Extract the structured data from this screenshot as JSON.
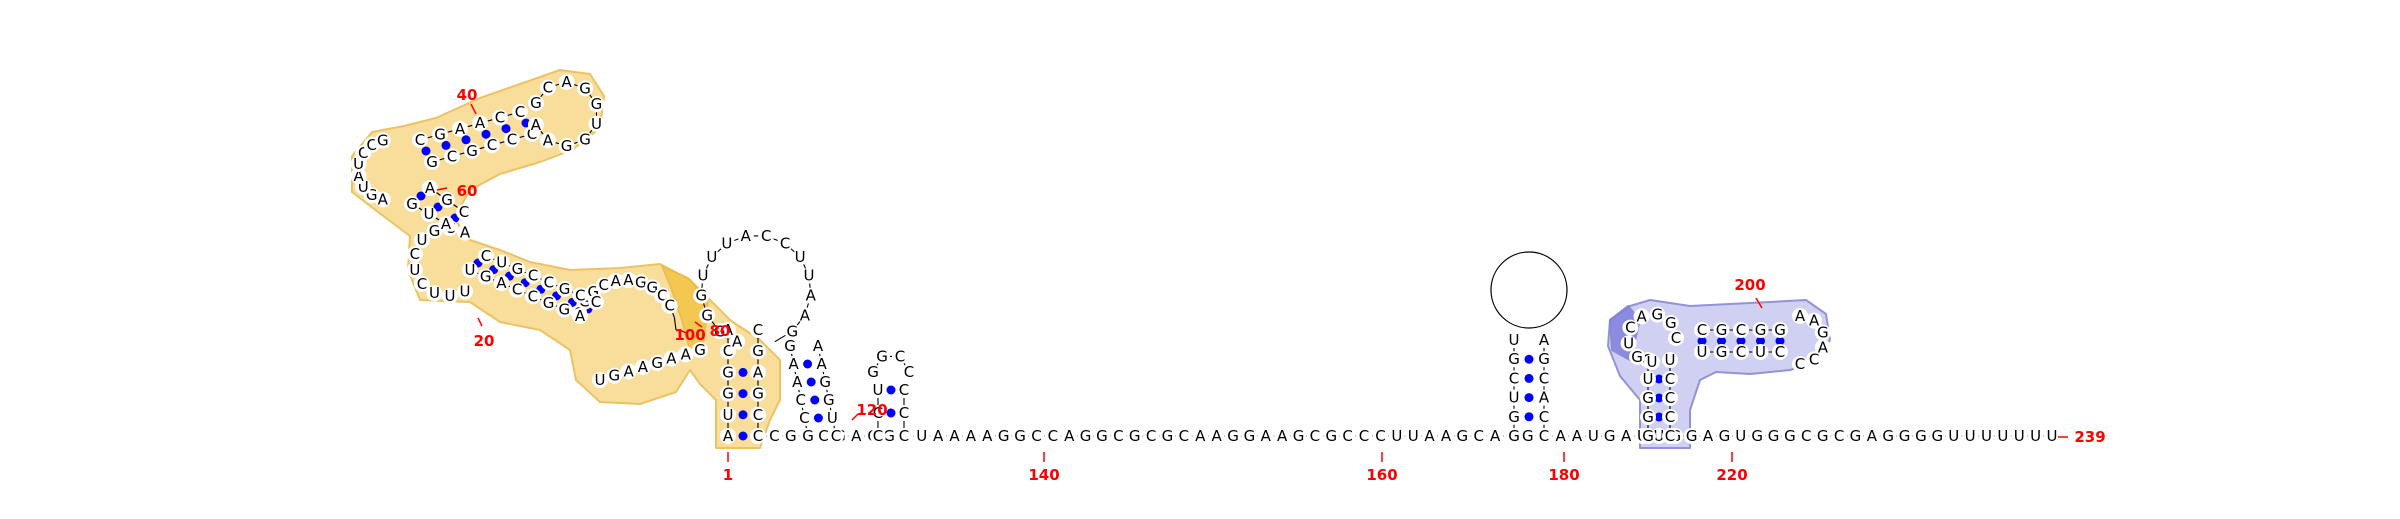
{
  "colors": {
    "background": "#ffffff",
    "nucleotide": "#000000",
    "backbone": "#000000",
    "pair_dot": "#0000ff",
    "number": "#ff0000",
    "highlight_yellow": "#f9d98a",
    "highlight_yellow_edge": "#e8b94a",
    "highlight_yellow_strong": "#f4c544",
    "highlight_blue": "#c8c8f0",
    "highlight_blue_edge": "#8080d0",
    "highlight_blue_strong": "#8080e0"
  },
  "position_labels": [
    "1",
    "20",
    "40",
    "60",
    "80",
    "100",
    "120",
    "140",
    "160",
    "180",
    "200",
    "220",
    "239"
  ],
  "sequences": {
    "tail_3prime": "CCGCCGACGUUAAAAGGCCAGGCGCGCAAGGAAGCGCCCUUAAGCAGGCAAUGAUUGGAGUGGGCGCGAGGGGUUUUUUU",
    "stem_1_17": "UGCCACCGACCAG",
    "loop_left": "CUUUUGACGGUCGUCUACGAUAGCGCCAGCCGCCCGACGCCCG",
    "junction_tall": "AGGGUUUACCUUAAG",
    "hairpin_small": "GCCCCUGCU",
    "hairpin_180": "UGCUGGACAC",
    "hairpin_200_left": "UGUGGGUACCGCGGGAAGACCUCCUCGUCCC",
    "u_letters_row": "UUUUUUUU"
  }
}
